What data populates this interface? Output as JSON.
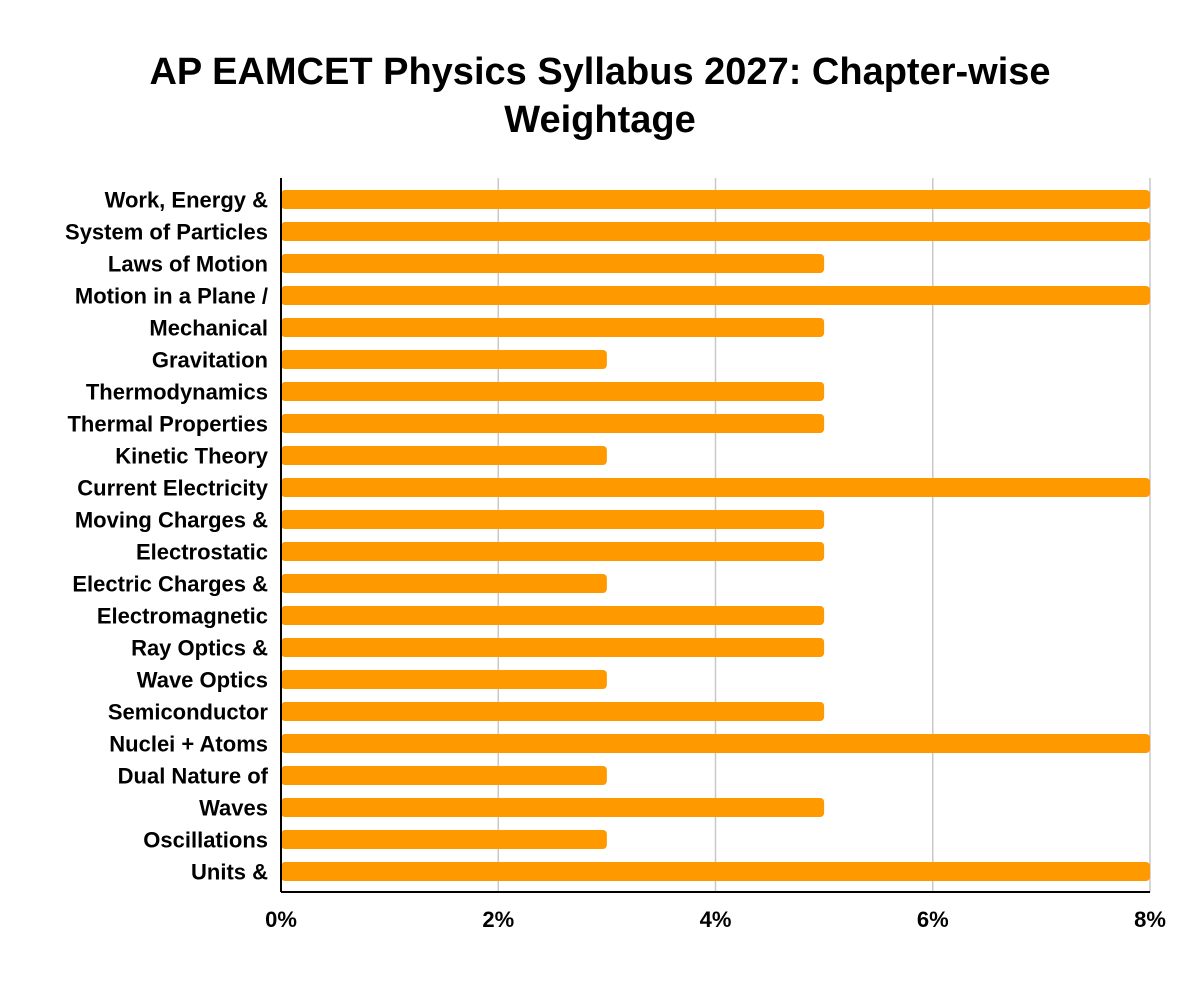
{
  "chart_data": {
    "type": "bar",
    "orientation": "horizontal",
    "title_lines": [
      "AP EAMCET Physics Syllabus 2027: Chapter-wise",
      "Weightage"
    ],
    "categories": [
      "Work, Energy &",
      "System of Particles",
      "Laws of Motion",
      "Motion in a Plane /",
      "Mechanical",
      "Gravitation",
      "Thermodynamics",
      "Thermal Properties",
      "Kinetic Theory",
      "Current Electricity",
      "Moving Charges &",
      "Electrostatic",
      "Electric Charges &",
      "Electromagnetic",
      "Ray Optics &",
      "Wave Optics",
      "Semiconductor",
      "Nuclei + Atoms",
      "Dual Nature of",
      "Waves",
      "Oscillations",
      "Units &"
    ],
    "values": [
      8,
      8,
      5,
      8,
      5,
      3,
      5,
      5,
      3,
      8,
      5,
      5,
      3,
      5,
      5,
      3,
      5,
      8,
      3,
      5,
      3,
      8
    ],
    "xlim": [
      0,
      8
    ],
    "xticks": [
      0,
      2,
      4,
      6,
      8
    ],
    "xtick_labels": [
      "0%",
      "2%",
      "4%",
      "6%",
      "8%"
    ],
    "bar_color": "#ff9900",
    "gridlines": "vertical",
    "legend": "none"
  }
}
